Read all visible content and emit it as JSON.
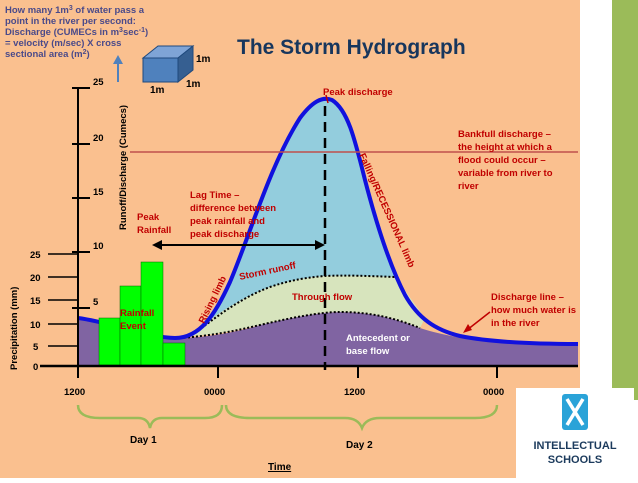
{
  "title": "The Storm Hydrograph",
  "info_box": {
    "line1": "How many 1m",
    "line1_sup": "3",
    "line1_end": " of water pass a",
    "line2": "point in the river per second:",
    "line3": "Discharge (CUMECs in m",
    "line3_sup": "3",
    "line3_mid": "sec",
    "line3_sup2": "-1",
    "line3_end": ")",
    "line4": "= velocity (m/sec) X cross",
    "line5": "sectional area (m",
    "line5_sup": "2",
    "line5_end": ")",
    "cube_labels": [
      "1m",
      "1m",
      "1m"
    ]
  },
  "axes": {
    "discharge_label": "Runoff/Discharge (Cumecs)",
    "discharge_ticks": [
      "25",
      "20",
      "15",
      "10",
      "5"
    ],
    "precip_label": "Precipitation (mm)",
    "precip_ticks": [
      "25",
      "20",
      "15",
      "10",
      "5",
      "0"
    ],
    "time_ticks": [
      "1200",
      "0000",
      "1200",
      "0000"
    ],
    "day_labels": [
      "Day 1",
      "Day 2"
    ],
    "time_label": "Time"
  },
  "annotations": {
    "peak_discharge": "Peak discharge",
    "bankfull": [
      "Bankfull discharge –",
      "the height at which a",
      "flood could occur –",
      "variable from river to",
      "river"
    ],
    "lag_time": [
      "Lag Time –",
      "difference between",
      "peak rainfall and",
      "peak discharge"
    ],
    "peak_rainfall": [
      "Peak",
      "Rainfall"
    ],
    "rainfall_event": [
      "Rainfall",
      "Event"
    ],
    "rising_limb": "Rising limb",
    "falling_limb": "Falling/RECESSIONAL  limb",
    "storm_runoff": "Storm runoff",
    "through_flow": "Through flow",
    "antecedent": [
      "Antecedent or",
      "base flow"
    ],
    "discharge_line": [
      "Discharge line –",
      "how much water is",
      "in the river"
    ]
  },
  "logo": {
    "line1": "INTELLECTUAL",
    "line2": "SCHOOLS"
  },
  "colors": {
    "background": "#fac08f",
    "discharge_line": "#1111dd",
    "storm_runoff": "#93cddd",
    "through_flow": "#d7e4bd",
    "base_flow": "#8064a2",
    "rainfall_bars": "#00ff00",
    "annotation_red": "#c00000",
    "title": "#17365d",
    "accent_green": "#9bbb59"
  }
}
